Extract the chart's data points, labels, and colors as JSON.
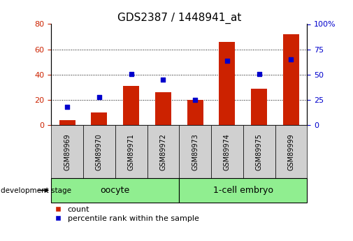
{
  "title": "GDS2387 / 1448941_at",
  "samples": [
    "GSM89969",
    "GSM89970",
    "GSM89971",
    "GSM89972",
    "GSM89973",
    "GSM89974",
    "GSM89975",
    "GSM89999"
  ],
  "counts": [
    4,
    10,
    31,
    26,
    20,
    66,
    29,
    72
  ],
  "percentile_ranks": [
    18,
    28,
    51,
    45,
    25,
    64,
    51,
    65
  ],
  "bar_color": "#cc2200",
  "dot_color": "#0000cc",
  "ylim_left": [
    0,
    80
  ],
  "ylim_right": [
    0,
    100
  ],
  "yticks_left": [
    0,
    20,
    40,
    60,
    80
  ],
  "yticks_right": [
    0,
    25,
    50,
    75,
    100
  ],
  "ytick_labels_right": [
    "0",
    "25",
    "50",
    "75",
    "100%"
  ],
  "bar_width": 0.5,
  "group_label_oocyte": "oocyte",
  "group_label_1cell": "1-cell embryo",
  "development_stage_label": "development stage",
  "legend_count": "count",
  "legend_pct": "percentile rank within the sample",
  "tick_label_color_left": "#cc2200",
  "tick_label_color_right": "#0000cc",
  "grey_box_color": "#d0d0d0",
  "green_box_color": "#90ee90",
  "oocyte_count": 4,
  "cell_count": 4
}
